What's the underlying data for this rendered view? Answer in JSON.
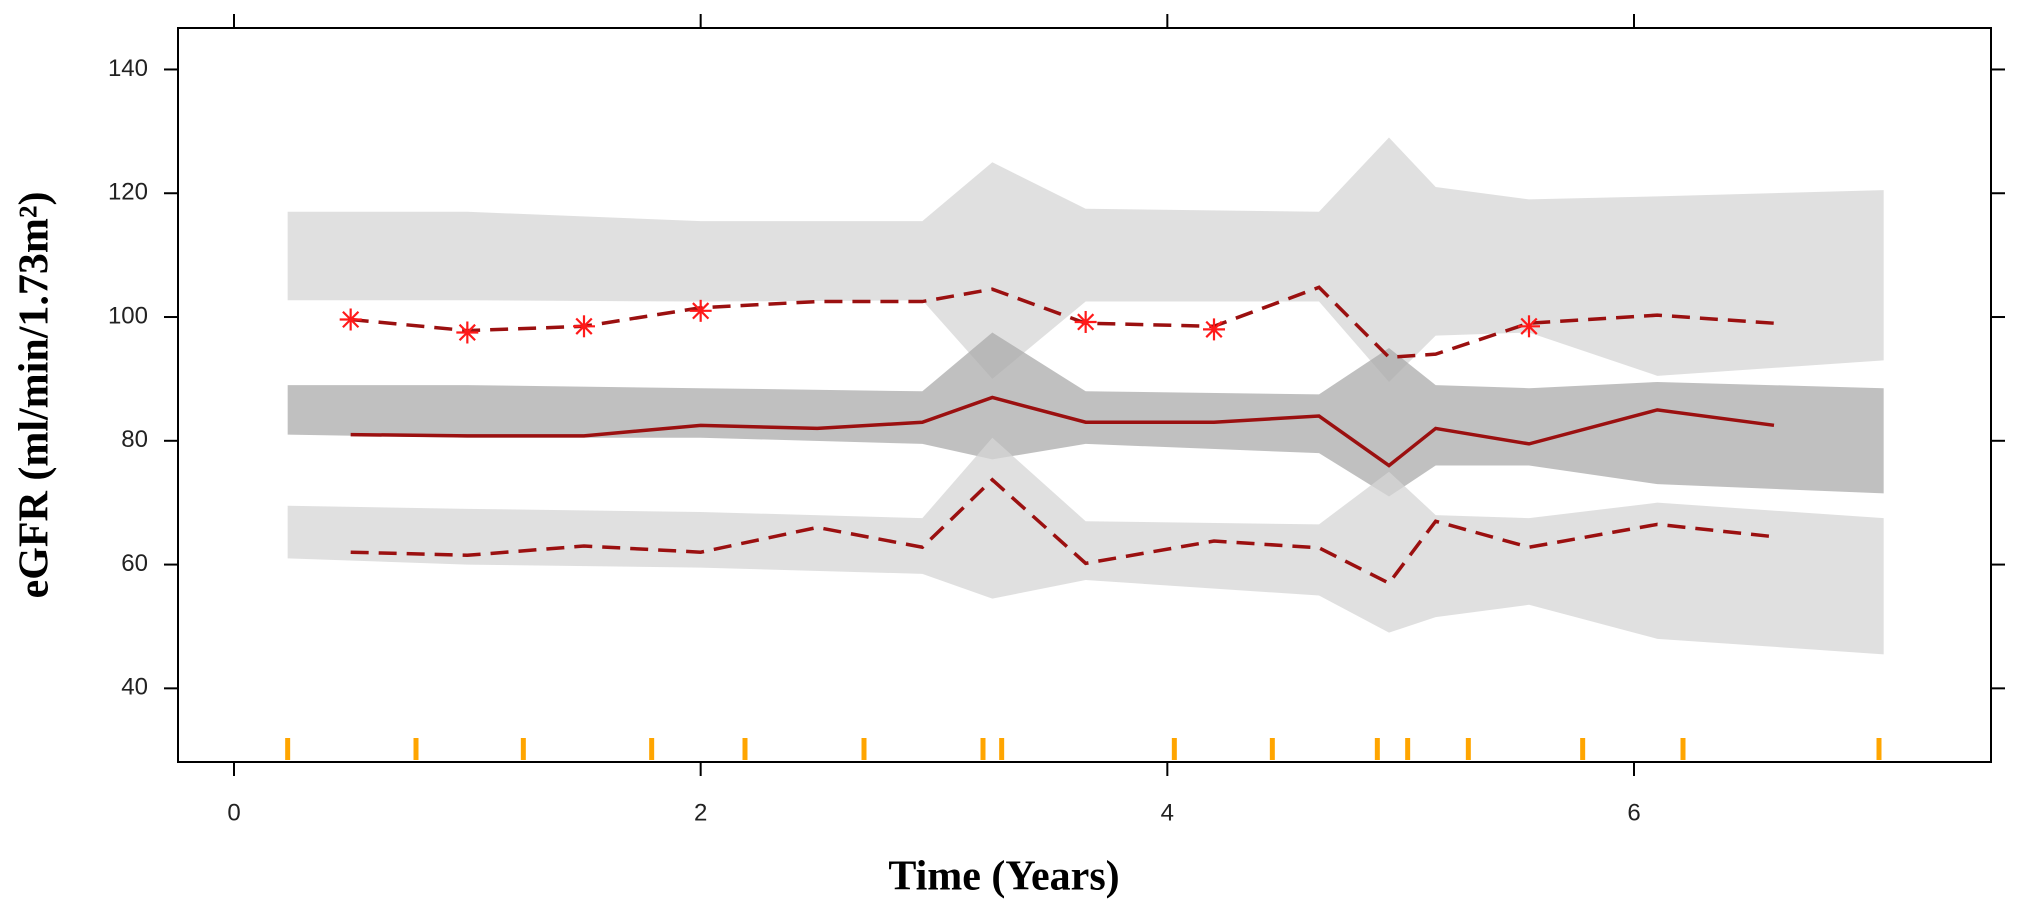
{
  "chart_data": {
    "type": "line",
    "xlabel": "Time (Years)",
    "ylabel": "eGFR (ml/min/1.73m²)",
    "xlim": [
      -0.24,
      7.53
    ],
    "ylim": [
      28.1,
      146.7
    ],
    "xticks": [
      0,
      2,
      4,
      6
    ],
    "yticks": [
      40,
      60,
      80,
      100,
      120,
      140
    ],
    "bands": [
      {
        "color": "#d6d6d6",
        "x": [
          0.23,
          1.0,
          2.0,
          2.95,
          3.25,
          3.65,
          4.65,
          4.95,
          5.15,
          5.55,
          6.1,
          7.07
        ],
        "upper": [
          117,
          117,
          115.5,
          115.5,
          125,
          117.5,
          117,
          129,
          121,
          119,
          119.5,
          120.5
        ],
        "lower": [
          102.7,
          102.7,
          102.5,
          102.7,
          90,
          102.5,
          102.5,
          89.5,
          97,
          97.5,
          90.5,
          93
        ]
      },
      {
        "color": "#ababab",
        "x": [
          0.23,
          1.0,
          2.0,
          2.95,
          3.25,
          3.65,
          4.65,
          4.95,
          5.15,
          5.55,
          6.1,
          7.07
        ],
        "upper": [
          89,
          89,
          88.5,
          88,
          97.5,
          88,
          87.5,
          95,
          89,
          88.5,
          89.5,
          88.5
        ],
        "lower": [
          81,
          80.5,
          80.5,
          79.5,
          77,
          79.5,
          78,
          71,
          76,
          76,
          73,
          71.5
        ]
      },
      {
        "color": "#d6d6d6",
        "x": [
          0.23,
          1.0,
          2.0,
          2.95,
          3.25,
          3.65,
          4.65,
          4.95,
          5.15,
          5.55,
          6.1,
          7.07
        ],
        "upper": [
          69.5,
          69,
          68.5,
          67.5,
          80.5,
          67,
          66.5,
          75,
          68,
          67.5,
          70,
          67.5
        ],
        "lower": [
          61,
          60,
          59.5,
          58.5,
          54.5,
          57.5,
          55,
          49,
          51.5,
          53.5,
          48,
          45.5
        ]
      }
    ],
    "x": [
      0.5,
      1.0,
      1.5,
      2.0,
      2.5,
      2.95,
      3.25,
      3.65,
      4.2,
      4.65,
      4.95,
      5.15,
      5.55,
      6.1,
      6.6
    ],
    "series": [
      {
        "color": "#9b1010",
        "dash": false,
        "values": [
          81,
          80.8,
          80.8,
          82.5,
          82,
          83,
          87,
          83,
          83,
          84,
          76,
          82,
          79.5,
          85,
          82.5
        ]
      },
      {
        "color": "#9b1010",
        "dash": true,
        "values": [
          99.6,
          97.8,
          98.5,
          101.5,
          102.5,
          102.5,
          104.5,
          99,
          98.5,
          104.8,
          93.5,
          94,
          99,
          100.3,
          99
        ]
      },
      {
        "color": "#9b1010",
        "dash": true,
        "values": [
          62,
          61.5,
          63,
          62,
          66,
          62.8,
          73.7,
          60.2,
          63.8,
          62.7,
          57,
          67,
          62.8,
          66.5,
          64.5
        ]
      }
    ],
    "points": {
      "color": "#ff1a1a",
      "x": [
        0.5,
        1.0,
        1.5,
        2.0,
        3.65,
        4.2,
        5.55
      ],
      "values": [
        99.6,
        97.5,
        98.5,
        101,
        99.2,
        98,
        98.5
      ]
    },
    "rug": {
      "color": "#ffa500",
      "x": [
        0.23,
        0.78,
        1.24,
        1.79,
        2.19,
        2.7,
        3.21,
        3.29,
        4.03,
        4.45,
        4.9,
        5.03,
        5.29,
        5.78,
        6.21,
        7.05
      ]
    }
  }
}
